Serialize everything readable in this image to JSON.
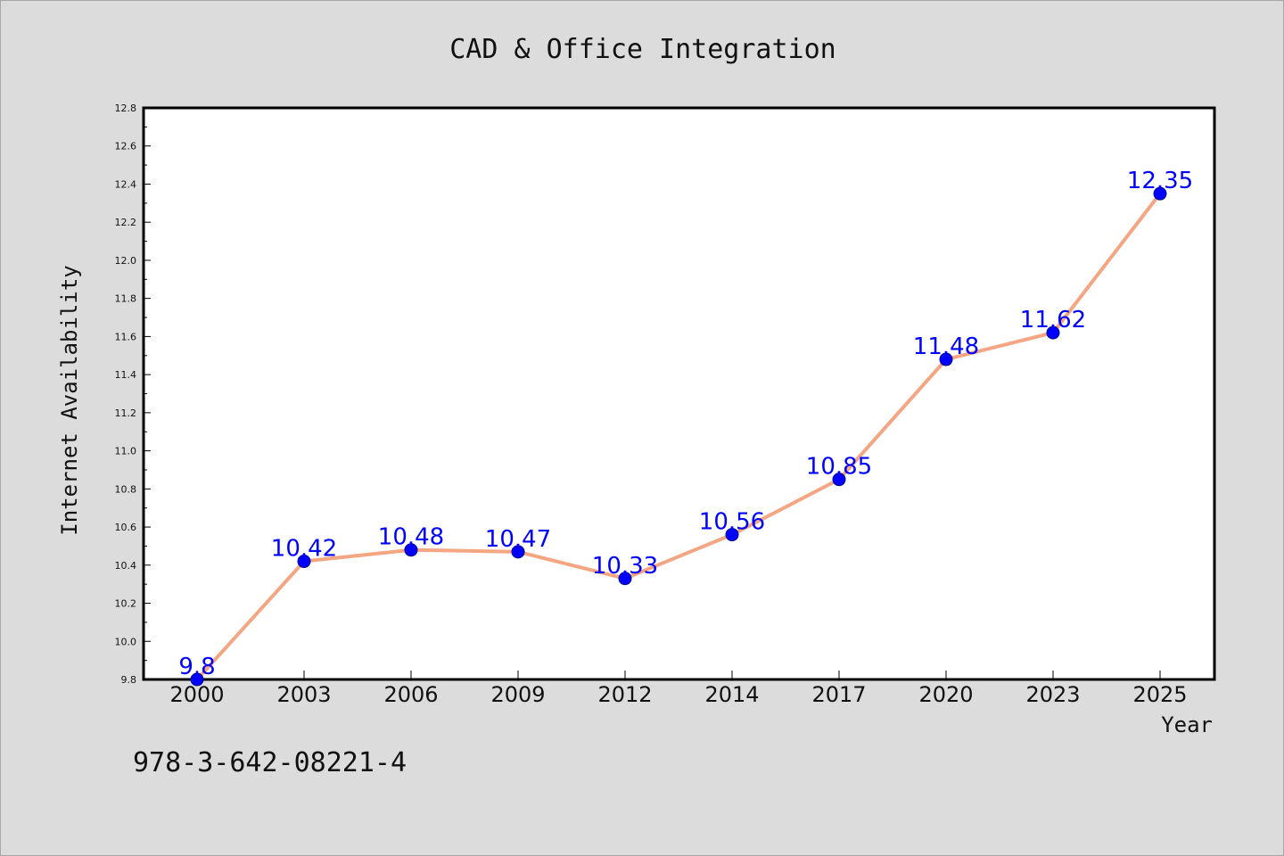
{
  "chart_data": {
    "type": "line",
    "title": "CAD & Office Integration",
    "xlabel": "Year",
    "ylabel": "Internet Availability",
    "categories": [
      "2000",
      "2003",
      "2006",
      "2009",
      "2012",
      "2014",
      "2017",
      "2020",
      "2023",
      "2025"
    ],
    "series": [
      {
        "values": [
          9.8,
          10.42,
          10.48,
          10.47,
          10.33,
          10.56,
          10.85,
          11.48,
          11.62,
          12.35
        ],
        "labels": [
          "9.8",
          "10.42",
          "10.48",
          "10.47",
          "10.33",
          "10.56",
          "10.85",
          "11.48",
          "11.62",
          "12.35"
        ]
      }
    ],
    "ylim": [
      9.8,
      12.8
    ],
    "yticks": [
      "9.8",
      "10.0",
      "10.2",
      "10.4",
      "10.6",
      "10.8",
      "11.0",
      "11.2",
      "11.4",
      "11.6",
      "11.8",
      "12.0",
      "12.2",
      "12.4",
      "12.6",
      "12.8"
    ],
    "grid": false,
    "colors": {
      "line": "#f4a582",
      "marker": "#0000ff",
      "label": "#0000ff",
      "background": "#dcdcdc",
      "plot_background": "#ffffff"
    }
  },
  "footer": {
    "isbn": "978-3-642-08221-4"
  }
}
